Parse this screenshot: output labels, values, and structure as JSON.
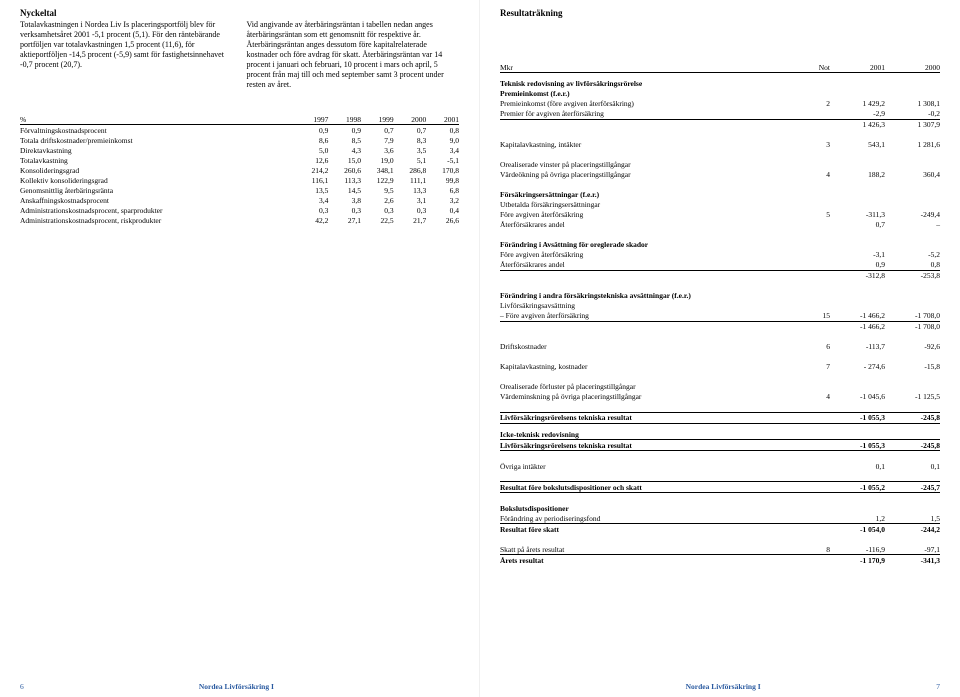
{
  "left": {
    "title": "Nyckeltal",
    "col1": "Totalavkastningen i Nordea Liv Is placeringsportfölj blev för verksamhetsåret 2001 -5,1 procent (5,1). För den räntebärande portföljen var totalavkastningen 1,5 procent (11,6), för aktieportföljen -14,5 procent (-5,9) samt för fastighetsinnehavet -0,7 procent (20,7).",
    "col2": "Vid angivande av återbäringsräntan i tabellen nedan anges återbäringsräntan som ett genomsnitt för respektive år. Återbäringsräntan anges dessutom före kapitalrelaterade kostnader och före avdrag för skatt. Återbäringsräntan var 14 procent i januari och februari, 10 procent i mars och april, 5 procent från maj till och med september samt 3 procent under resten av året.",
    "kpi": {
      "headers": [
        "%",
        "1997",
        "1998",
        "1999",
        "2000",
        "2001"
      ],
      "rows": [
        [
          "Förvaltningskostnadsprocent",
          "0,9",
          "0,9",
          "0,7",
          "0,7",
          "0,8"
        ],
        [
          "Totala driftskostnader/premieinkomst",
          "8,6",
          "8,5",
          "7,9",
          "8,3",
          "9,0"
        ],
        [
          "Direktavkastning",
          "5,0",
          "4,3",
          "3,6",
          "3,5",
          "3,4"
        ],
        [
          "Totalavkastning",
          "12,6",
          "15,0",
          "19,0",
          "5,1",
          "-5,1"
        ],
        [
          "Konsolideringsgrad",
          "214,2",
          "260,6",
          "348,1",
          "286,8",
          "170,8"
        ],
        [
          "Kollektiv konsolideringsgrad",
          "116,1",
          "113,3",
          "122,9",
          "111,1",
          "99,8"
        ],
        [
          "Genomsnittlig återbäringsränta",
          "13,5",
          "14,5",
          "9,5",
          "13,3",
          "6,8"
        ],
        [
          "Anskaffningskostnadsprocent",
          "3,4",
          "3,8",
          "2,6",
          "3,1",
          "3,2"
        ],
        [
          "Administrationskostnadsprocent, sparprodukter",
          "0,3",
          "0,3",
          "0,3",
          "0,3",
          "0,4"
        ],
        [
          "Administrationskostnadsprocent, riskprodukter",
          "42,2",
          "27,1",
          "22,5",
          "21,7",
          "26,6"
        ]
      ]
    },
    "footer": {
      "pageno": "6",
      "center": "Nordea Livförsäkring I"
    }
  },
  "right": {
    "title": "Resultaträkning",
    "header": {
      "c0": "Mkr",
      "c1": "Not",
      "c2": "2001",
      "c3": "2000"
    },
    "rows": [
      {
        "type": "section",
        "label": "Teknisk redovisning av livförsäkringsrörelse"
      },
      {
        "type": "bold",
        "label": "Premieinkomst (f.e.r.)"
      },
      {
        "label": "Premieinkomst (före avgiven återförsäkring)",
        "note": "2",
        "c1": "1 429,2",
        "c2": "1 308,1"
      },
      {
        "label": "Premier för avgiven återförsäkring",
        "c1": "-2,9",
        "c2": "-0,2",
        "ruleb": true
      },
      {
        "label": "",
        "c1": "1 426,3",
        "c2": "1 307,9"
      },
      {
        "type": "spacer"
      },
      {
        "label": "Kapitalavkastning, intäkter",
        "note": "3",
        "c1": "543,1",
        "c2": "1 281,6"
      },
      {
        "type": "spacer"
      },
      {
        "label": "Orealiserade vinster på placeringstillgångar"
      },
      {
        "label": "Värdeökning på övriga placeringstillgångar",
        "note": "4",
        "c1": "188,2",
        "c2": "360,4"
      },
      {
        "type": "spacer"
      },
      {
        "type": "bold",
        "label": "Försäkringsersättningar (f.e.r.)"
      },
      {
        "label": "Utbetalda försäkringsersättningar"
      },
      {
        "label": "Före avgiven återförsäkring",
        "note": "5",
        "c1": "-311,3",
        "c2": "-249,4"
      },
      {
        "label": "Återförsäkrares andel",
        "c1": "0,7",
        "c2": "–"
      },
      {
        "type": "spacer"
      },
      {
        "type": "bold",
        "label": "Förändring i Avsättning för oreglerade skador"
      },
      {
        "label": "Före avgiven återförsäkring",
        "c1": "-3,1",
        "c2": "-5,2"
      },
      {
        "label": "Återförsäkrares andel",
        "c1": "0,9",
        "c2": "0,8",
        "ruleb": true
      },
      {
        "label": "",
        "c1": "-312,8",
        "c2": "-253,8"
      },
      {
        "type": "spacer"
      },
      {
        "type": "bold",
        "label": "Förändring i andra försäkringstekniska avsättningar (f.e.r.)"
      },
      {
        "label": "Livförsäkringsavsättning"
      },
      {
        "label": "– Före avgiven återförsäkring",
        "note": "15",
        "c1": "-1 466,2",
        "c2": "-1 708,0",
        "ruleb": true
      },
      {
        "label": "",
        "c1": "-1 466,2",
        "c2": "-1 708,0"
      },
      {
        "type": "spacer"
      },
      {
        "label": "Driftskostnader",
        "note": "6",
        "c1": "-113,7",
        "c2": "-92,6"
      },
      {
        "type": "spacer"
      },
      {
        "label": "Kapitalavkastning, kostnader",
        "note": "7",
        "c1": "- 274,6",
        "c2": "-15,8"
      },
      {
        "type": "spacer"
      },
      {
        "label": "Orealiserade förluster på placeringstillgångar"
      },
      {
        "label": "Värdeminskning på övriga placeringstillgångar",
        "note": "4",
        "c1": "-1 045,6",
        "c2": "-1 125,5"
      },
      {
        "type": "spacer"
      },
      {
        "type": "boldrule",
        "label": "Livförsäkringsrörelsens tekniska resultat",
        "c1": "-1 055,3",
        "c2": "-245,8"
      },
      {
        "type": "section",
        "label": "Icke-teknisk redovisning"
      },
      {
        "type": "boldrule",
        "label": "Livförsäkringsrörelsens tekniska resultat",
        "c1": "-1 055,3",
        "c2": "-245,8"
      },
      {
        "type": "spacer"
      },
      {
        "label": "Övriga intäkter",
        "c1": "0,1",
        "c2": "0,1"
      },
      {
        "type": "spacer"
      },
      {
        "type": "boldrule",
        "label": "Resultat före bokslutsdispositioner och skatt",
        "c1": "-1 055,2",
        "c2": "-245,7"
      },
      {
        "type": "spacer"
      },
      {
        "type": "bold",
        "label": "Bokslutsdispositioner"
      },
      {
        "label": "Förändring av periodiseringsfond",
        "c1": "1,2",
        "c2": "1,5",
        "ruleb": true
      },
      {
        "type": "bold",
        "label": "Resultat före skatt",
        "c1": "-1 054,0",
        "c2": "-244,2"
      },
      {
        "type": "spacer"
      },
      {
        "label": "Skatt på årets resultat",
        "note": "8",
        "c1": "-116,9",
        "c2": "-97,1",
        "ruleb": true
      },
      {
        "type": "bold",
        "label": "Årets resultat",
        "c1": "-1 170,9",
        "c2": "-341,3"
      }
    ],
    "footer": {
      "pageno": "7",
      "center": "Nordea Livförsäkring I"
    }
  }
}
